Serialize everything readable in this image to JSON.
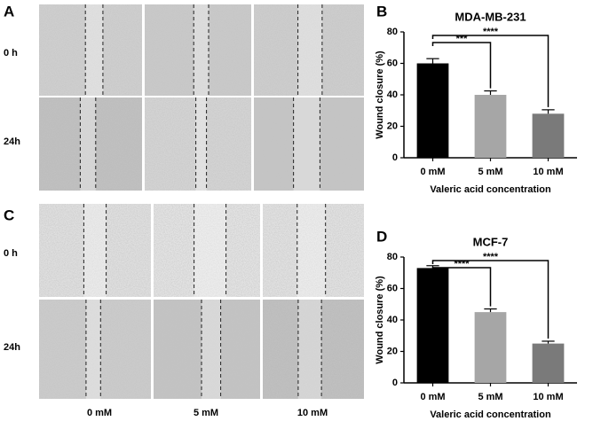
{
  "panel_labels": [
    "A",
    "B",
    "C",
    "D"
  ],
  "row_labels": [
    "0 h",
    "24h",
    "0 h",
    "24h"
  ],
  "column_labels": [
    "0 mM",
    "5 mM",
    "10 mM"
  ],
  "chart_data": [
    {
      "type": "bar",
      "title": "MDA-MB-231",
      "categories": [
        "0 mM",
        "5 mM",
        "10 mM"
      ],
      "values": [
        60,
        40,
        28
      ],
      "errors": [
        3,
        2.5,
        2.5
      ],
      "colors": [
        "#000000",
        "#a6a6a6",
        "#7a7a7a"
      ],
      "ylim": [
        0,
        80
      ],
      "yticks": [
        0,
        20,
        40,
        60,
        80
      ],
      "ylabel": "Wound closure (%)",
      "xlabel": "Valeric acid concentration",
      "annotations": [
        {
          "text": "***",
          "from": "0 mM",
          "to": "5 mM"
        },
        {
          "text": "****",
          "from": "0 mM",
          "to": "10 mM"
        }
      ]
    },
    {
      "type": "bar",
      "title": "MCF-7",
      "categories": [
        "0 mM",
        "5 mM",
        "10 mM"
      ],
      "values": [
        73,
        45,
        25
      ],
      "errors": [
        1.5,
        2,
        1.5
      ],
      "colors": [
        "#000000",
        "#a6a6a6",
        "#7a7a7a"
      ],
      "ylim": [
        0,
        80
      ],
      "yticks": [
        0,
        20,
        40,
        60,
        80
      ],
      "ylabel": "Wound closure (%)",
      "xlabel": "Valeric acid concentration",
      "annotations": [
        {
          "text": "****",
          "from": "0 mM",
          "to": "5 mM"
        },
        {
          "text": "****",
          "from": "0 mM",
          "to": "10 mM"
        }
      ]
    }
  ]
}
